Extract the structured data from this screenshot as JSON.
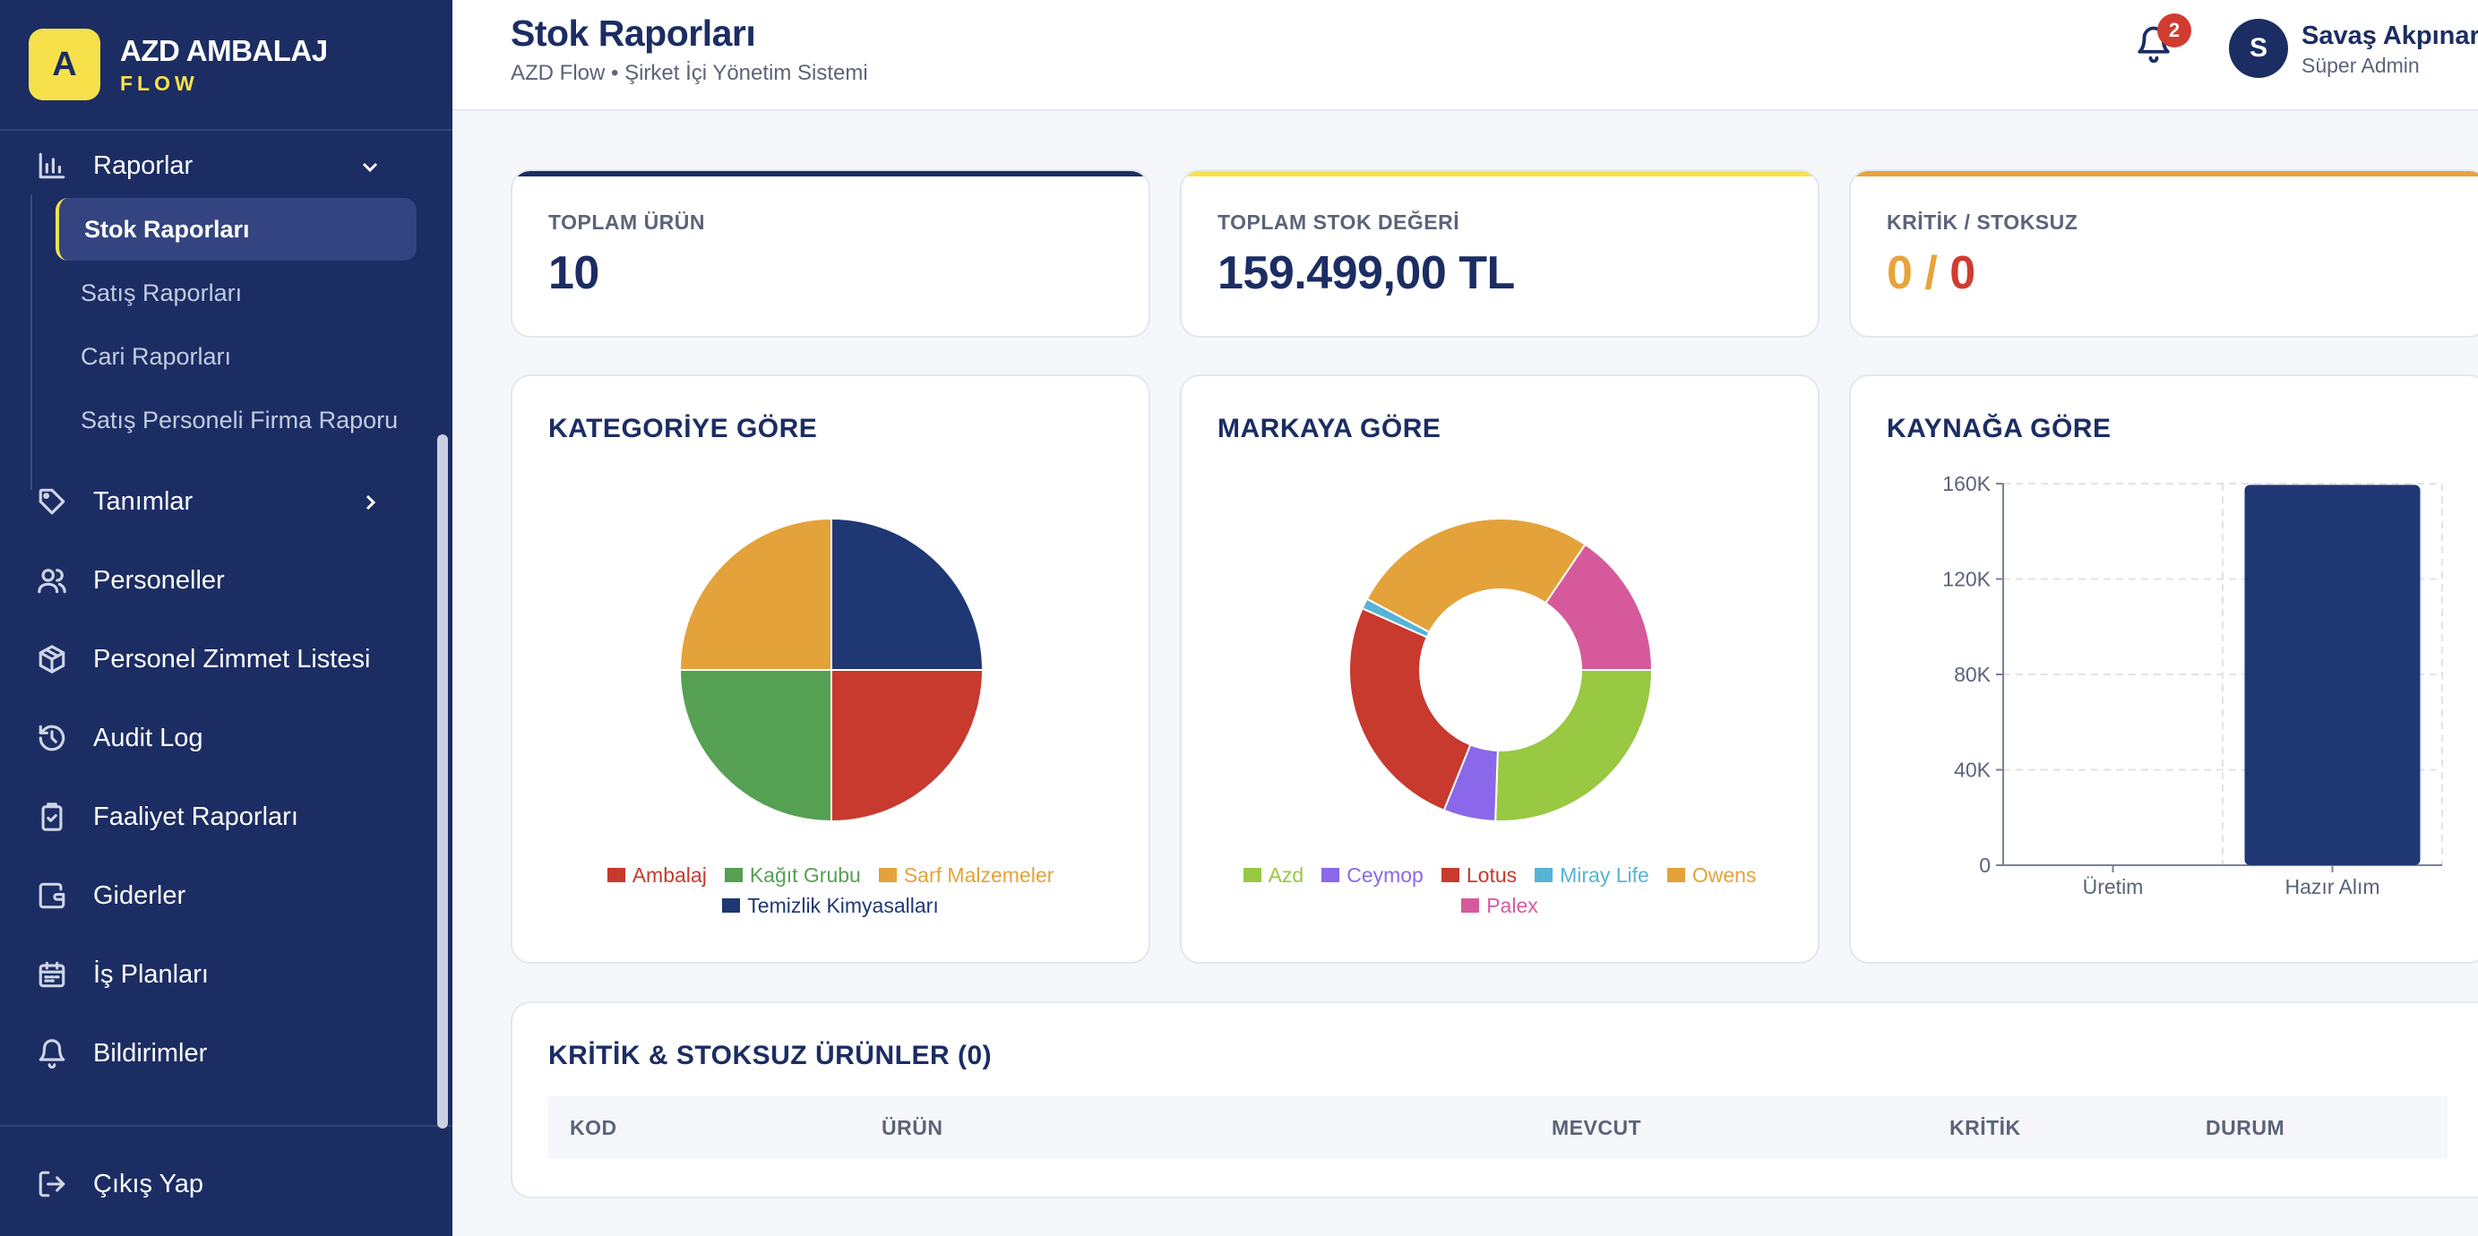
{
  "brand": {
    "logo_letter": "A",
    "name": "AZD AMBALAJ",
    "sub": "FLOW"
  },
  "sidebar": {
    "items": [
      {
        "label": "Raporlar",
        "icon": "bar-chart-icon"
      },
      {
        "label": "Tanımlar",
        "icon": "tag-icon"
      },
      {
        "label": "Personeller",
        "icon": "users-icon"
      },
      {
        "label": "Personel Zimmet Listesi",
        "icon": "package-icon"
      },
      {
        "label": "Audit Log",
        "icon": "history-icon"
      },
      {
        "label": "Faaliyet Raporları",
        "icon": "clipboard-icon"
      },
      {
        "label": "Giderler",
        "icon": "wallet-icon"
      },
      {
        "label": "İş Planları",
        "icon": "calendar-icon"
      },
      {
        "label": "Bildirimler",
        "icon": "bell-icon"
      }
    ],
    "subitems": [
      {
        "label": "Stok Raporları",
        "active": true
      },
      {
        "label": "Satış Raporları",
        "active": false
      },
      {
        "label": "Cari Raporları",
        "active": false
      },
      {
        "label": "Satış Personeli Firma Raporu",
        "active": false
      }
    ],
    "logout": "Çıkış Yap"
  },
  "header": {
    "title": "Stok Raporları",
    "subtitle": "AZD Flow • Şirket İçi Yönetim Sistemi",
    "notification_count": "2",
    "user_initial": "S",
    "user_name": "Savaş Akpınar",
    "user_role": "Süper Admin"
  },
  "stats": [
    {
      "label": "TOPLAM ÜRÜN",
      "value": "10",
      "accent": "#1b2d63"
    },
    {
      "label": "TOPLAM STOK DEĞERİ",
      "value": "159.499,00 TL",
      "accent": "#f7e14a"
    },
    {
      "label": "KRİTİK / STOKSUZ",
      "critical": "0",
      "sep": " / ",
      "out": "0",
      "accent": "#e8a33a"
    }
  ],
  "charts": {
    "category_title": "KATEGORİYE GÖRE",
    "brand_title": "MARKAYA GÖRE",
    "source_title": "KAYNAĞA GÖRE"
  },
  "chart_data": [
    {
      "type": "pie",
      "series": [
        {
          "name": "Ambalaj",
          "value": 2.5,
          "color": "#c8392e"
        },
        {
          "name": "Kağıt Grubu",
          "value": 2.5,
          "color": "#55a052"
        },
        {
          "name": "Sarf Malzemeler",
          "value": 2.5,
          "color": "#e4a23a"
        },
        {
          "name": "Temizlik Kimyasalları",
          "value": 2.5,
          "color": "#1f3874"
        }
      ]
    },
    {
      "type": "pie",
      "series": [
        {
          "name": "Azd",
          "value": 23,
          "color": "#99c842"
        },
        {
          "name": "Ceymop",
          "value": 5,
          "color": "#8b67ea"
        },
        {
          "name": "Lotus",
          "value": 23,
          "color": "#c8392e"
        },
        {
          "name": "Miray Life",
          "value": 1,
          "color": "#56b4d6"
        },
        {
          "name": "Owens",
          "value": 24,
          "color": "#e4a23a"
        },
        {
          "name": "Palex",
          "value": 14,
          "color": "#d65a9b"
        }
      ]
    },
    {
      "type": "bar",
      "categories": [
        "Üretim",
        "Hazır Alım"
      ],
      "values": [
        0,
        159499
      ],
      "ylim": [
        0,
        160000
      ],
      "yticks": [
        {
          "value": 0,
          "label": "0"
        },
        {
          "value": 40000,
          "label": "40K"
        },
        {
          "value": 80000,
          "label": "80K"
        },
        {
          "value": 120000,
          "label": "120K"
        },
        {
          "value": 160000,
          "label": "160K"
        }
      ],
      "color": "#1f3874",
      "grid": true
    }
  ],
  "table": {
    "title": "KRİTİK & STOKSUZ ÜRÜNLER (0)",
    "columns": [
      "KOD",
      "ÜRÜN",
      "MEVCUT",
      "KRİTİK",
      "DURUM"
    ]
  }
}
